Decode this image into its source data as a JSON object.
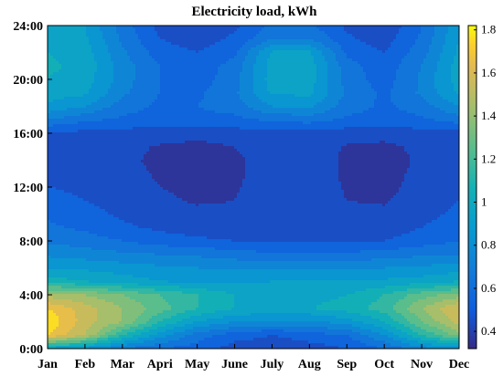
{
  "chart_data": {
    "type": "heatmap",
    "style": "filled-contour",
    "title": "Electricity load, kWh",
    "xlabel": "",
    "ylabel": "",
    "x_tick_labels": [
      "Jan",
      "Feb",
      "Mar",
      "Apri",
      "May",
      "June",
      "July",
      "Aug",
      "Sep",
      "Oct",
      "Nov",
      "Dec"
    ],
    "y_tick_labels": [
      "0:00",
      "4:00",
      "8:00",
      "12:00",
      "16:00",
      "20:00",
      "24:00"
    ],
    "y_tick_hours": [
      0,
      4,
      8,
      12,
      16,
      20,
      24
    ],
    "x_range": [
      1,
      12
    ],
    "y_range": [
      0,
      24
    ],
    "colorbar": {
      "ticks": [
        0.4,
        0.6,
        0.8,
        1,
        1.2,
        1.4,
        1.6,
        1.8
      ],
      "range": [
        0.32,
        1.82
      ],
      "colormap": "parula"
    },
    "hours": [
      0,
      1,
      2,
      3,
      4,
      5,
      6,
      7,
      8,
      9,
      10,
      11,
      12,
      13,
      14,
      15,
      16,
      17,
      18,
      19,
      20,
      21,
      22,
      23,
      24
    ],
    "values": [
      [
        0.95,
        0.85,
        0.7,
        0.6,
        0.55,
        0.45,
        0.42,
        0.45,
        0.5,
        0.6,
        0.75,
        0.85
      ],
      [
        1.7,
        1.5,
        1.1,
        0.85,
        0.65,
        0.55,
        0.5,
        0.55,
        0.6,
        0.8,
        1.1,
        1.35
      ],
      [
        1.78,
        1.55,
        1.4,
        1.1,
        0.9,
        0.8,
        0.78,
        0.78,
        0.85,
        1.0,
        1.3,
        1.55
      ],
      [
        1.7,
        1.55,
        1.4,
        1.25,
        1.1,
        1.0,
        0.98,
        1.0,
        1.05,
        1.15,
        1.4,
        1.6
      ],
      [
        1.45,
        1.4,
        1.3,
        1.2,
        1.1,
        1.0,
        0.95,
        0.95,
        1.0,
        1.1,
        1.25,
        1.35
      ],
      [
        1.05,
        1.0,
        0.95,
        0.9,
        0.88,
        0.88,
        0.9,
        0.9,
        0.9,
        0.92,
        0.95,
        1.0
      ],
      [
        0.9,
        0.88,
        0.85,
        0.82,
        0.8,
        0.78,
        0.78,
        0.78,
        0.78,
        0.8,
        0.82,
        0.85
      ],
      [
        0.78,
        0.75,
        0.72,
        0.7,
        0.68,
        0.65,
        0.62,
        0.62,
        0.62,
        0.65,
        0.68,
        0.7
      ],
      [
        0.68,
        0.65,
        0.6,
        0.55,
        0.52,
        0.5,
        0.48,
        0.48,
        0.48,
        0.5,
        0.55,
        0.6
      ],
      [
        0.62,
        0.58,
        0.52,
        0.48,
        0.45,
        0.45,
        0.46,
        0.46,
        0.45,
        0.45,
        0.5,
        0.55
      ],
      [
        0.58,
        0.54,
        0.48,
        0.44,
        0.42,
        0.42,
        0.45,
        0.46,
        0.42,
        0.42,
        0.47,
        0.52
      ],
      [
        0.54,
        0.5,
        0.45,
        0.42,
        0.39,
        0.4,
        0.45,
        0.46,
        0.4,
        0.39,
        0.45,
        0.5
      ],
      [
        0.5,
        0.48,
        0.44,
        0.4,
        0.37,
        0.39,
        0.45,
        0.46,
        0.39,
        0.37,
        0.44,
        0.48
      ],
      [
        0.48,
        0.46,
        0.43,
        0.39,
        0.36,
        0.38,
        0.45,
        0.46,
        0.38,
        0.36,
        0.43,
        0.46
      ],
      [
        0.47,
        0.45,
        0.42,
        0.38,
        0.35,
        0.38,
        0.45,
        0.46,
        0.38,
        0.35,
        0.42,
        0.45
      ],
      [
        0.47,
        0.45,
        0.43,
        0.39,
        0.37,
        0.4,
        0.46,
        0.46,
        0.39,
        0.37,
        0.43,
        0.46
      ],
      [
        0.48,
        0.47,
        0.46,
        0.45,
        0.44,
        0.45,
        0.47,
        0.47,
        0.45,
        0.45,
        0.46,
        0.47
      ],
      [
        0.7,
        0.62,
        0.58,
        0.55,
        0.56,
        0.57,
        0.62,
        0.64,
        0.58,
        0.55,
        0.58,
        0.65
      ],
      [
        0.88,
        0.8,
        0.65,
        0.58,
        0.6,
        0.65,
        0.8,
        0.82,
        0.65,
        0.58,
        0.65,
        0.8
      ],
      [
        0.95,
        0.92,
        0.72,
        0.6,
        0.58,
        0.68,
        0.92,
        0.92,
        0.68,
        0.58,
        0.72,
        0.92
      ],
      [
        1.0,
        0.95,
        0.75,
        0.6,
        0.55,
        0.66,
        0.95,
        0.95,
        0.66,
        0.55,
        0.72,
        0.95
      ],
      [
        1.02,
        0.97,
        0.75,
        0.6,
        0.54,
        0.64,
        0.95,
        0.95,
        0.64,
        0.54,
        0.7,
        0.95
      ],
      [
        1.0,
        0.95,
        0.72,
        0.55,
        0.5,
        0.58,
        0.92,
        0.92,
        0.58,
        0.5,
        0.66,
        0.92
      ],
      [
        0.98,
        0.92,
        0.68,
        0.5,
        0.45,
        0.52,
        0.7,
        0.7,
        0.52,
        0.45,
        0.62,
        0.9
      ],
      [
        0.95,
        0.9,
        0.65,
        0.47,
        0.42,
        0.48,
        0.62,
        0.62,
        0.48,
        0.42,
        0.6,
        0.88
      ]
    ]
  }
}
